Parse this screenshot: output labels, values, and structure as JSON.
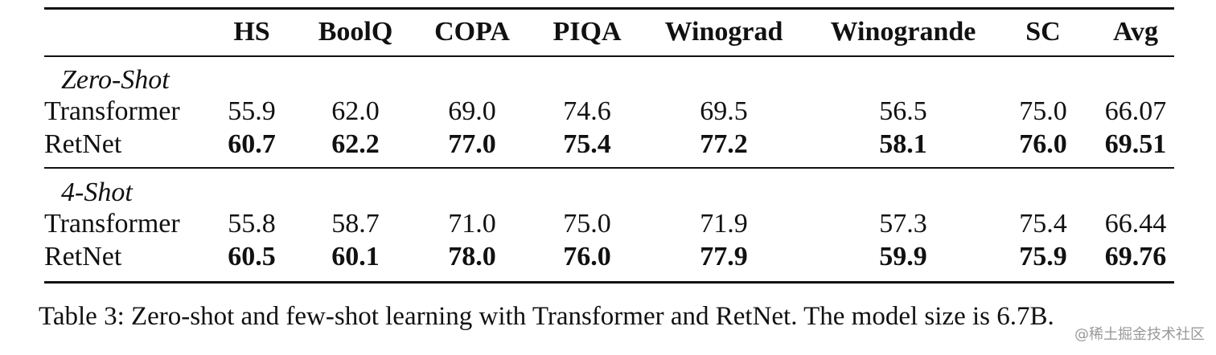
{
  "table": {
    "header": [
      "HS",
      "BoolQ",
      "COPA",
      "PIQA",
      "Winograd",
      "Winogrande",
      "SC",
      "Avg"
    ],
    "groups": [
      {
        "title": "Zero-Shot",
        "rows": [
          {
            "label": "Transformer",
            "values": [
              "55.9",
              "62.0",
              "69.0",
              "74.6",
              "69.5",
              "56.5",
              "75.0",
              "66.07"
            ]
          },
          {
            "label": "RetNet",
            "values": [
              "60.7",
              "62.2",
              "77.0",
              "75.4",
              "77.2",
              "58.1",
              "76.0",
              "69.51"
            ]
          }
        ]
      },
      {
        "title": "4-Shot",
        "rows": [
          {
            "label": "Transformer",
            "values": [
              "55.8",
              "58.7",
              "71.0",
              "75.0",
              "71.9",
              "57.3",
              "75.4",
              "66.44"
            ]
          },
          {
            "label": "RetNet",
            "values": [
              "60.5",
              "60.1",
              "78.0",
              "76.0",
              "77.9",
              "59.9",
              "75.9",
              "69.76"
            ]
          }
        ]
      }
    ]
  },
  "caption": "Table 3: Zero-shot and few-shot learning with Transformer and RetNet. The model size is 6.7B.",
  "watermark": "@稀土掘金技术社区"
}
